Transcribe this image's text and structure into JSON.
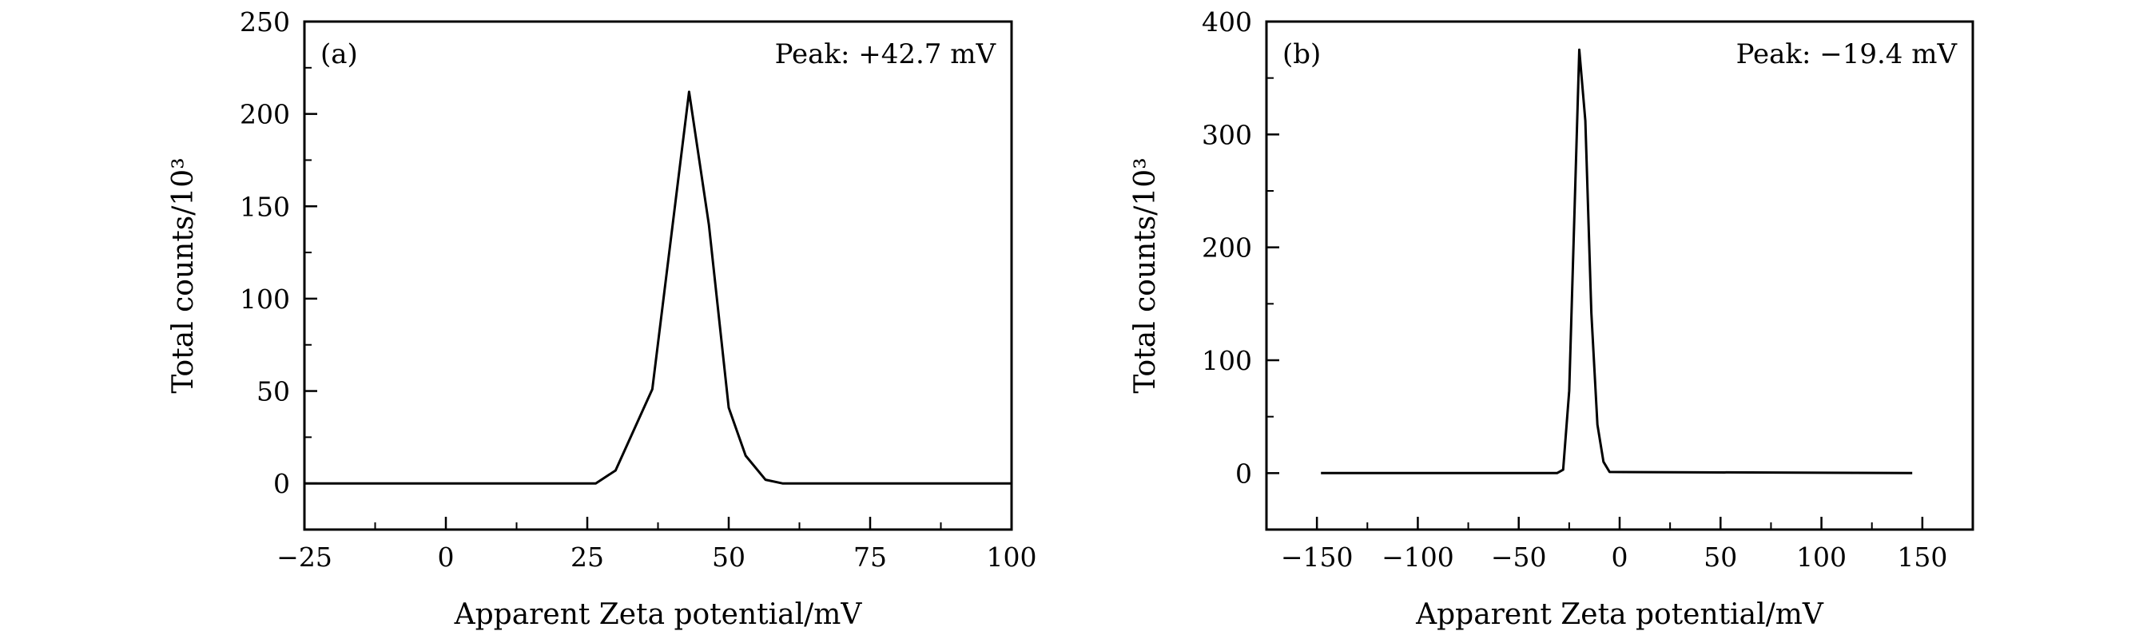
{
  "chart_data": [
    {
      "type": "line",
      "panel_label": "(a)",
      "annotation": "Peak: +42.7 mV",
      "xlabel": "Apparent Zeta potential/mV",
      "ylabel": "Total counts/10³",
      "xlim": [
        -25,
        100
      ],
      "ylim": [
        -25,
        250
      ],
      "xticks": [
        -25,
        0,
        25,
        50,
        75,
        100
      ],
      "xtick_labels": [
        "−25",
        "0",
        "25",
        "50",
        "75",
        "100"
      ],
      "xminor": [
        -12.5,
        12.5,
        37.5,
        62.5,
        87.5
      ],
      "yticks": [
        0,
        50,
        100,
        150,
        200,
        250
      ],
      "ytick_labels": [
        "0",
        "50",
        "100",
        "150",
        "200",
        "250"
      ],
      "yminor": [
        -25,
        25,
        75,
        125,
        175,
        225
      ],
      "grid": false,
      "line_color": "#000000",
      "series": [
        {
          "x": [
            -25,
            26.5,
            30,
            36.5,
            43,
            46.5,
            50,
            53,
            56.5,
            59.5,
            100
          ],
          "y": [
            0,
            0,
            7,
            51,
            212,
            140,
            41,
            15,
            2,
            0,
            0
          ]
        }
      ]
    },
    {
      "type": "line",
      "panel_label": "(b)",
      "annotation": "Peak: −19.4 mV",
      "xlabel": "Apparent Zeta potential/mV",
      "ylabel": "Total counts/10³",
      "xlim": [
        -175,
        175
      ],
      "ylim": [
        -50,
        400
      ],
      "xticks": [
        -150,
        -100,
        -50,
        0,
        50,
        100,
        150
      ],
      "xtick_labels": [
        "−150",
        "−100",
        "−50",
        "0",
        "50",
        "100",
        "150"
      ],
      "xminor": [
        -125,
        -75,
        -25,
        25,
        75,
        125
      ],
      "yticks": [
        0,
        100,
        200,
        300,
        400
      ],
      "ytick_labels": [
        "0",
        "100",
        "200",
        "300",
        "400"
      ],
      "yminor": [
        -50,
        50,
        150,
        250,
        350
      ],
      "grid": false,
      "line_color": "#000000",
      "series": [
        {
          "x": [
            -148,
            -31,
            -28,
            -25,
            -20,
            -17,
            -14,
            -11,
            -8,
            -5,
            145
          ],
          "y": [
            0,
            0,
            3,
            73,
            375,
            312,
            142,
            43,
            10,
            1,
            0
          ]
        }
      ]
    }
  ]
}
